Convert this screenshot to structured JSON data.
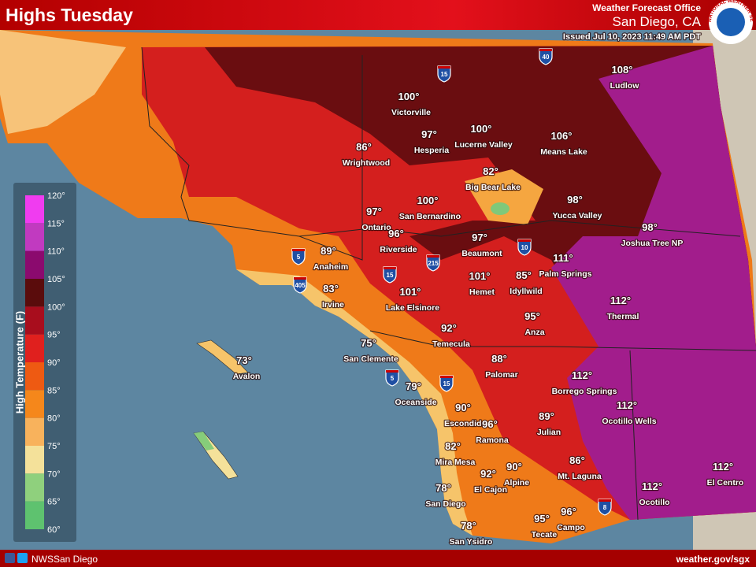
{
  "header": {
    "title": "Highs Tuesday",
    "office": "Weather Forecast Office",
    "location": "San Diego, CA",
    "issued": "Issued Jul 10, 2023 11:49 AM PDT",
    "logo": "NATIONAL WEATHER SERVICE"
  },
  "legend": {
    "title": "High Temperature (F)",
    "labels": [
      "120°",
      "115°",
      "110°",
      "105°",
      "100°",
      "95°",
      "90°",
      "85°",
      "80°",
      "75°",
      "70°",
      "65°",
      "60°"
    ]
  },
  "cities": [
    {
      "temp": "108°",
      "name": "Ludlow"
    },
    {
      "temp": "100°",
      "name": "Victorville"
    },
    {
      "temp": "97°",
      "name": "Hesperia"
    },
    {
      "temp": "100°",
      "name": "Lucerne Valley"
    },
    {
      "temp": "106°",
      "name": "Means Lake"
    },
    {
      "temp": "86°",
      "name": "Wrightwood"
    },
    {
      "temp": "82°",
      "name": "Big Bear Lake"
    },
    {
      "temp": "98°",
      "name": "Yucca Valley"
    },
    {
      "temp": "100°",
      "name": "San Bernardino"
    },
    {
      "temp": "97°",
      "name": "Ontario"
    },
    {
      "temp": "98°",
      "name": "Joshua Tree NP"
    },
    {
      "temp": "96°",
      "name": "Riverside"
    },
    {
      "temp": "97°",
      "name": "Beaumont"
    },
    {
      "temp": "89°",
      "name": "Anaheim"
    },
    {
      "temp": "111°",
      "name": "Palm Springs"
    },
    {
      "temp": "101°",
      "name": "Hemet"
    },
    {
      "temp": "85°",
      "name": "Idyllwild"
    },
    {
      "temp": "83°",
      "name": "Irvine"
    },
    {
      "temp": "101°",
      "name": "Lake Elsinore"
    },
    {
      "temp": "112°",
      "name": "Thermal"
    },
    {
      "temp": "95°",
      "name": "Anza"
    },
    {
      "temp": "92°",
      "name": "Temecula"
    },
    {
      "temp": "75°",
      "name": "San Clemente"
    },
    {
      "temp": "73°",
      "name": "Avalon"
    },
    {
      "temp": "88°",
      "name": "Palomar"
    },
    {
      "temp": "112°",
      "name": "Borrego Springs"
    },
    {
      "temp": "79°",
      "name": "Oceanside"
    },
    {
      "temp": "112°",
      "name": "Ocotillo Wells"
    },
    {
      "temp": "90°",
      "name": "Escondido"
    },
    {
      "temp": "96°",
      "name": "Ramona"
    },
    {
      "temp": "89°",
      "name": "Julian"
    },
    {
      "temp": "82°",
      "name": "Mira Mesa"
    },
    {
      "temp": "86°",
      "name": "Mt. Laguna"
    },
    {
      "temp": "90°",
      "name": "Alpine"
    },
    {
      "temp": "92°",
      "name": "El Cajon"
    },
    {
      "temp": "112°",
      "name": "El Centro"
    },
    {
      "temp": "78°",
      "name": "San Diego"
    },
    {
      "temp": "112°",
      "name": "Ocotillo"
    },
    {
      "temp": "96°",
      "name": "Campo"
    },
    {
      "temp": "95°",
      "name": "Tecate"
    },
    {
      "temp": "78°",
      "name": "San Ysidro"
    }
  ],
  "highways": [
    "40",
    "15",
    "5",
    "405",
    "215",
    "15",
    "10",
    "8",
    "15",
    "5"
  ],
  "footer": {
    "social": "NWSSan Diego",
    "url": "weather.gov/sgx"
  }
}
